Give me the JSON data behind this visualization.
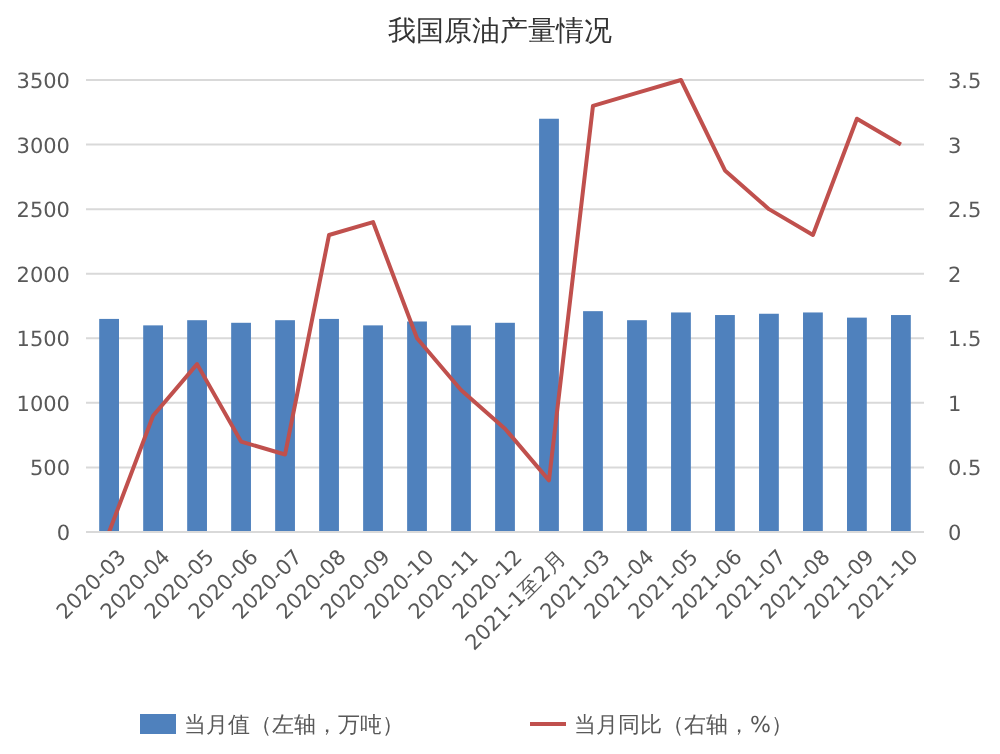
{
  "chart_data": {
    "type": "bar",
    "title": "我国原油产量情况",
    "categories": [
      "2020-03",
      "2020-04",
      "2020-05",
      "2020-06",
      "2020-07",
      "2020-08",
      "2020-09",
      "2020-10",
      "2020-11",
      "2020-12",
      "2021-1至2月",
      "2021-03",
      "2021-04",
      "2021-05",
      "2021-06",
      "2021-07",
      "2021-08",
      "2021-09",
      "2021-10"
    ],
    "series": [
      {
        "name": "当月值（左轴，万吨）",
        "color": "#4f81bd",
        "values": [
          1650,
          1600,
          1640,
          1620,
          1640,
          1650,
          1600,
          1630,
          1600,
          1620,
          3200,
          1710,
          1640,
          1700,
          1680,
          1690,
          1700,
          1660,
          1680
        ]
      },
      {
        "name": "当月同比（右轴，%）",
        "type": "line",
        "axis": "y2",
        "color": "#c0504d",
        "values": [
          0,
          0.9,
          1.3,
          0.7,
          0.6,
          2.3,
          2.4,
          1.5,
          1.1,
          0.8,
          0.4,
          3.3,
          3.4,
          3.5,
          2.8,
          2.5,
          2.3,
          3.2,
          3.0
        ]
      }
    ],
    "ylim": [
      0,
      3500
    ],
    "yticks": [
      0,
      500,
      1000,
      1500,
      2000,
      2500,
      3000,
      3500
    ],
    "y2lim": [
      0,
      3.5
    ],
    "y2ticks": [
      0,
      0.5,
      1,
      1.5,
      2,
      2.5,
      3,
      3.5
    ],
    "grid": "y",
    "legend": "bottom"
  }
}
